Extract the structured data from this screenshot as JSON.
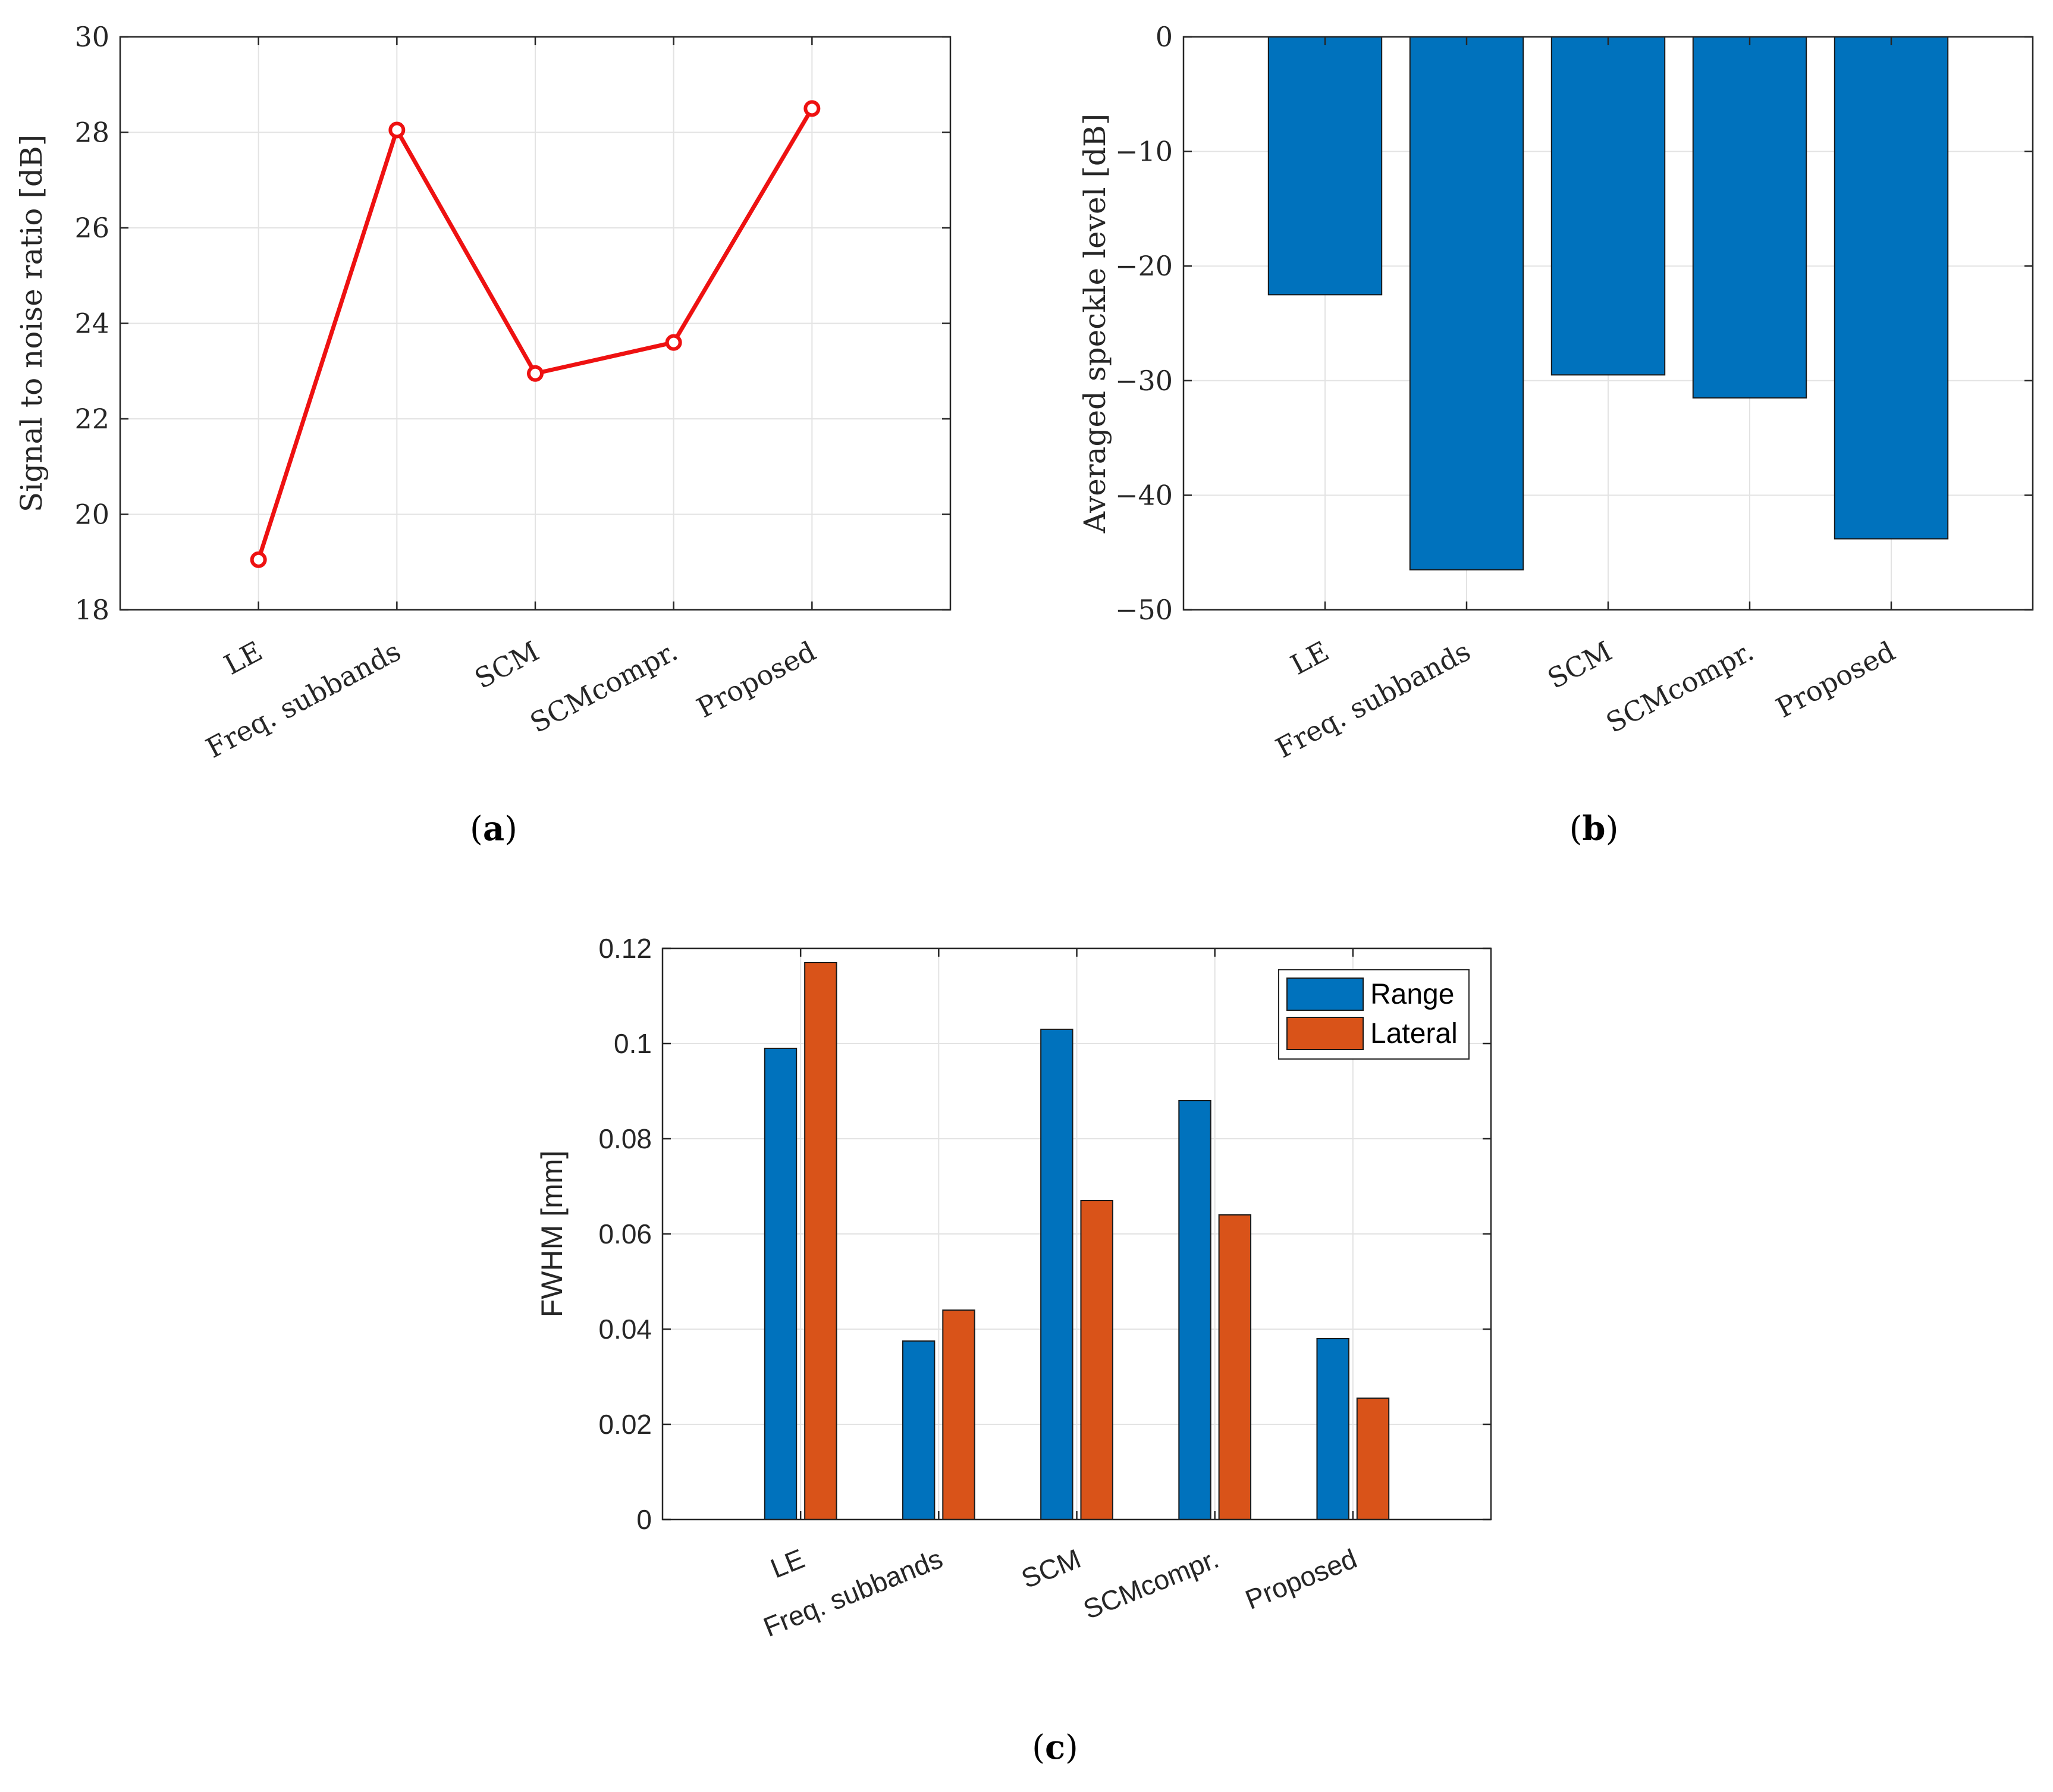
{
  "colors": {
    "line": "#ee1111",
    "bar_blue": "#0072bd",
    "bar_orange": "#d95319",
    "grid": "#e3e3e3",
    "axis": "#262626"
  },
  "chart_data": [
    {
      "id": "a",
      "type": "line",
      "caption_letter": "a",
      "caption_open": "(",
      "caption_close": ")",
      "categories": [
        "LE",
        "Freq. subbands",
        "SCM",
        "SCMcompr.",
        "Proposed"
      ],
      "series": [
        {
          "name": "SNR",
          "values": [
            19.05,
            28.05,
            22.95,
            23.6,
            28.5
          ]
        }
      ],
      "title": "",
      "xlabel": "",
      "ylabel": "Signal to noise ratio [dB]",
      "ylim": [
        18,
        30
      ],
      "yticks": [
        18,
        20,
        22,
        24,
        26,
        28,
        30
      ],
      "ytick_labels": [
        "18",
        "20",
        "22",
        "24",
        "26",
        "28",
        "30"
      ],
      "grid": true
    },
    {
      "id": "b",
      "type": "bar",
      "caption_letter": "b",
      "caption_open": "(",
      "caption_close": ")",
      "categories": [
        "LE",
        "Freq. subbands",
        "SCM",
        "SCMcompr.",
        "Proposed"
      ],
      "series": [
        {
          "name": "Speckle",
          "values": [
            -22.5,
            -46.5,
            -29.5,
            -31.5,
            -43.8
          ]
        }
      ],
      "title": "",
      "xlabel": "",
      "ylabel": "Averaged speckle level [dB]",
      "ylim": [
        -50,
        0
      ],
      "yticks": [
        -50,
        -40,
        -30,
        -20,
        -10,
        0
      ],
      "ytick_labels": [
        "−50",
        "−40",
        "−30",
        "−20",
        "−10",
        "0"
      ],
      "grid": true
    },
    {
      "id": "c",
      "type": "bar",
      "caption_letter": "c",
      "caption_open": "(",
      "caption_close": ")",
      "categories": [
        "LE",
        "Freq. subbands",
        "SCM",
        "SCMcompr.",
        "Proposed"
      ],
      "series": [
        {
          "name": "Range",
          "values": [
            0.099,
            0.0375,
            0.103,
            0.088,
            0.038
          ]
        },
        {
          "name": "Lateral",
          "values": [
            0.117,
            0.044,
            0.067,
            0.064,
            0.0255
          ]
        }
      ],
      "title": "",
      "xlabel": "",
      "ylabel": "FWHM [mm]",
      "ylim": [
        0,
        0.12
      ],
      "yticks": [
        0,
        0.02,
        0.04,
        0.06,
        0.08,
        0.1,
        0.12
      ],
      "ytick_labels": [
        "0",
        "0.02",
        "0.04",
        "0.06",
        "0.08",
        "0.1",
        "0.12"
      ],
      "legend": {
        "location": "top-right",
        "entries": [
          "Range",
          "Lateral"
        ]
      },
      "grid": true
    }
  ]
}
